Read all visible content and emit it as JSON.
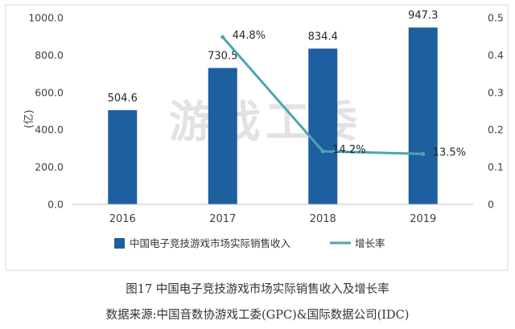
{
  "chart_data": {
    "type": "bar",
    "categories": [
      "2016",
      "2017",
      "2018",
      "2019"
    ],
    "series": [
      {
        "name": "中国电子竞技游戏市场实际销售收入",
        "type": "bar",
        "axis": "left",
        "values": [
          504.6,
          730.5,
          834.4,
          947.3
        ],
        "labels": [
          "504.6",
          "730.5",
          "834.4",
          "947.3"
        ]
      },
      {
        "name": "增长率",
        "type": "line",
        "axis": "right",
        "values": [
          null,
          0.448,
          0.142,
          0.135
        ],
        "labels": [
          "",
          "44.8%",
          "14.2%",
          "13.5%"
        ]
      }
    ],
    "ylabel": "(亿)",
    "ylim": [
      0,
      1000
    ],
    "y_ticks": [
      "0.0",
      "200.0",
      "400.0",
      "600.0",
      "800.0",
      "1000.0"
    ],
    "y2lim": [
      0,
      0.5
    ],
    "y2_ticks": [
      "0",
      "0.1",
      "0.2",
      "0.3",
      "0.4",
      "0.5"
    ],
    "grid": false,
    "legend_position": "bottom",
    "colors": {
      "bar": "#1e5fa0",
      "line": "#4aa6b0"
    },
    "watermark": "游戏工委"
  },
  "caption": "图17 中国电子竞技游戏市场实际销售收入及增长率",
  "source": "数据来源:中国音数协游戏工委(GPC)&国际数据公司(IDC)"
}
